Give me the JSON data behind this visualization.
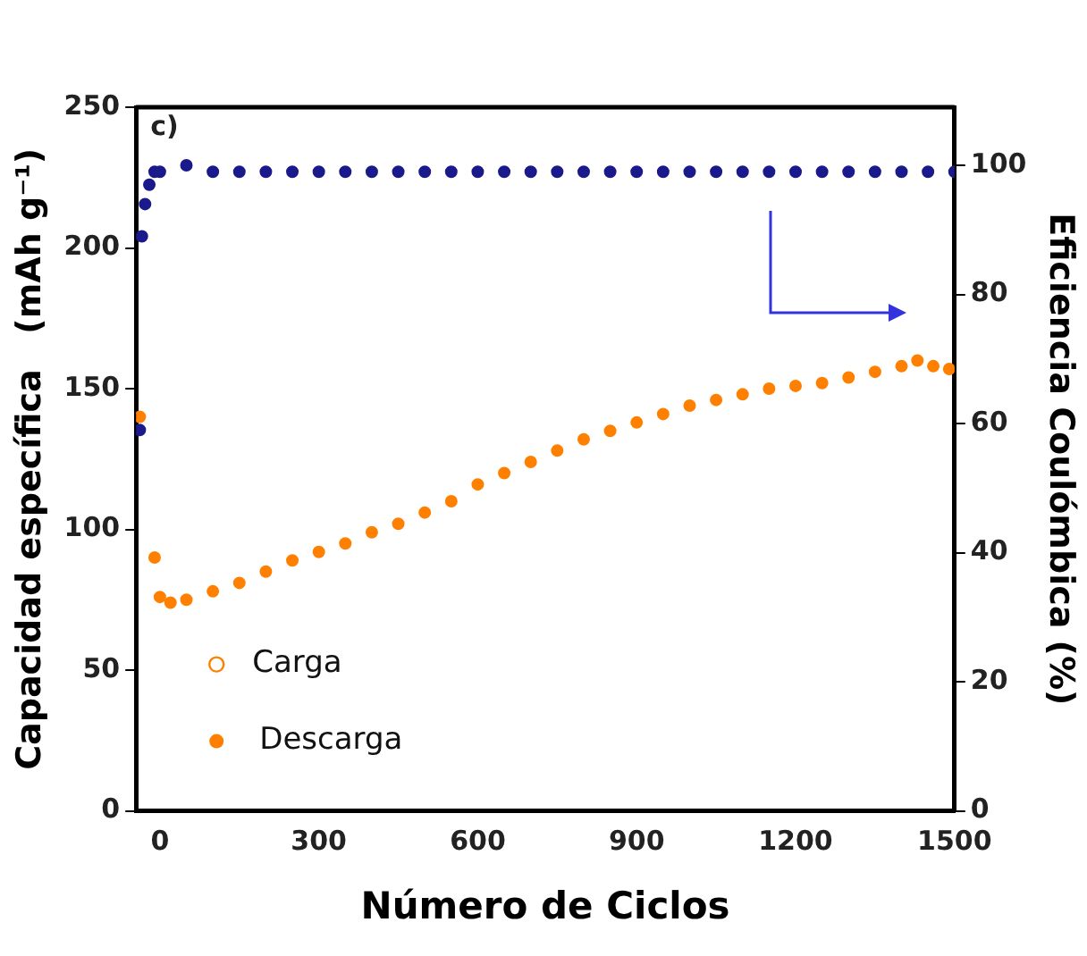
{
  "chart_data": {
    "type": "scatter",
    "xlabel": "Número de Ciclos",
    "ylabel": "Capacidad específica   (mAh g⁻¹)",
    "y2label": "Eficiencia Coulómbica (%)",
    "annotations": [
      "c)"
    ],
    "xlim": [
      -45,
      1500
    ],
    "xticks": [
      0,
      300,
      600,
      900,
      1200,
      1500
    ],
    "ylim": [
      0,
      250
    ],
    "yticks": [
      0,
      50,
      100,
      150,
      200,
      250
    ],
    "y2lim": [
      0,
      109
    ],
    "y2ticks": [
      0,
      20,
      40,
      60,
      80,
      100
    ],
    "grid": false,
    "legend": "bottom left",
    "marker": "circle",
    "series": [
      {
        "name": "Carga",
        "color": "#ff8000"
      },
      {
        "name": "Descarga",
        "color": "#ff8000",
        "x": [
          -38,
          -10,
          0,
          20,
          50,
          100,
          150,
          200,
          250,
          300,
          350,
          400,
          450,
          500,
          550,
          600,
          650,
          700,
          750,
          800,
          850,
          900,
          950,
          1000,
          1050,
          1100,
          1150,
          1200,
          1250,
          1300,
          1350,
          1400,
          1430,
          1460,
          1490
        ],
        "values": [
          140,
          90,
          76,
          74,
          75,
          78,
          81,
          85,
          89,
          92,
          95,
          99,
          102,
          106,
          110,
          116,
          120,
          124,
          128,
          132,
          135,
          138,
          141,
          144,
          146,
          148,
          150,
          151,
          152,
          154,
          156,
          158,
          160,
          158,
          157
        ]
      },
      {
        "color": "#1a1a8c",
        "axis": "y2",
        "x": [
          -38,
          -34,
          -28,
          -20,
          -10,
          0,
          50,
          100,
          150,
          200,
          250,
          300,
          350,
          400,
          450,
          500,
          550,
          600,
          650,
          700,
          750,
          800,
          850,
          900,
          950,
          1000,
          1050,
          1100,
          1150,
          1200,
          1250,
          1300,
          1350,
          1400,
          1450,
          1500
        ],
        "values": [
          59,
          89,
          94,
          97,
          99,
          99,
          100,
          99,
          99,
          99,
          99,
          99,
          99,
          99,
          99,
          99,
          99,
          99,
          99,
          99,
          99,
          99,
          99,
          99,
          99,
          99,
          99,
          99,
          99,
          99,
          99,
          99,
          99,
          99,
          99,
          99
        ]
      }
    ]
  }
}
